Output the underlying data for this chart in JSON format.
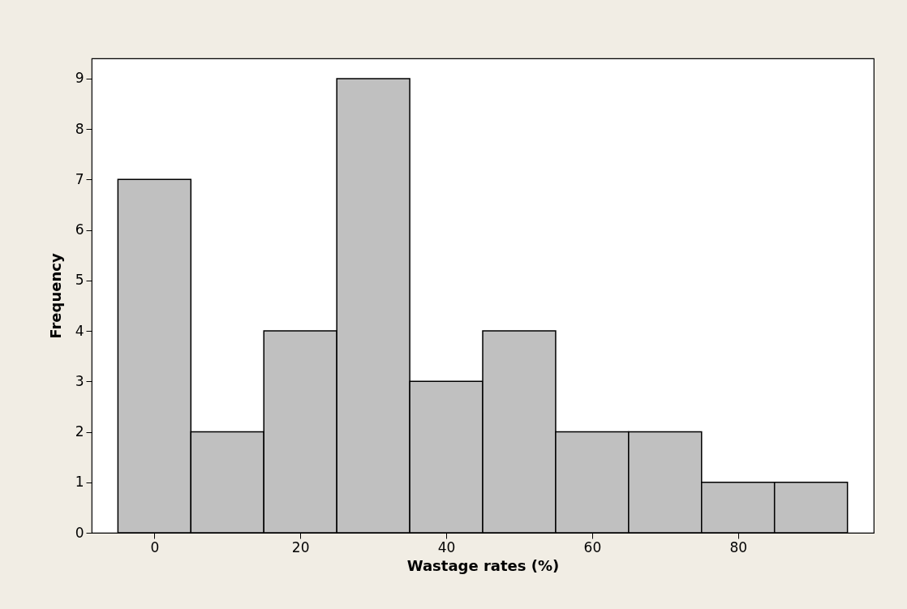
{
  "chart_data": {
    "type": "histogram",
    "xlabel": "Wastage rates (%)",
    "ylabel": "Frequency",
    "bins": [
      -5,
      5,
      15,
      25,
      35,
      45,
      55,
      65,
      75,
      85,
      95
    ],
    "values": [
      7,
      2,
      4,
      9,
      3,
      4,
      2,
      2,
      1,
      1
    ],
    "color": "#c0c0c0",
    "xlim": [
      -8.6,
      98.6
    ],
    "xticks": [
      0,
      20,
      40,
      60,
      80
    ],
    "ylim": [
      0,
      9.4
    ],
    "yticks": [
      0,
      1,
      2,
      3,
      4,
      5,
      6,
      7,
      8,
      9
    ]
  }
}
